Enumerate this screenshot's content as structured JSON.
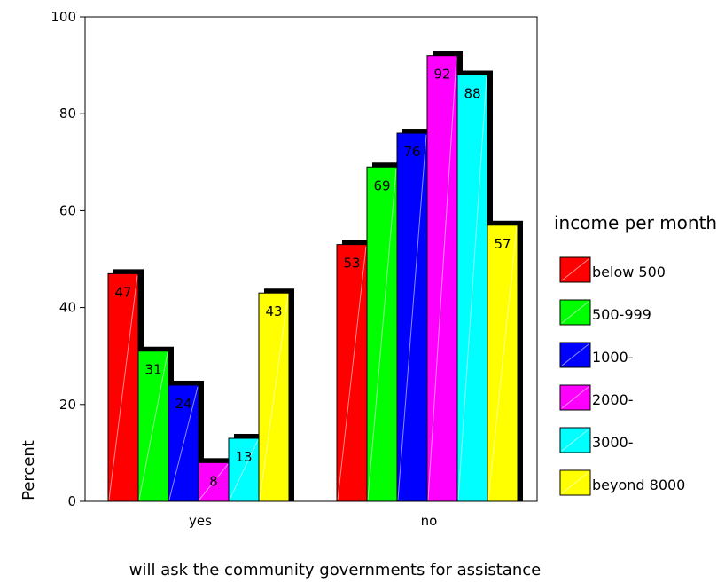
{
  "chart_data": {
    "type": "bar",
    "categories": [
      "yes",
      "no"
    ],
    "series": [
      {
        "name": "below 500",
        "values": [
          47,
          53
        ],
        "color": "#ff0000"
      },
      {
        "name": "500-999",
        "values": [
          31,
          69
        ],
        "color": "#00ff00"
      },
      {
        "name": "1000-",
        "values": [
          24,
          76
        ],
        "color": "#0000ff"
      },
      {
        "name": "2000-",
        "values": [
          8,
          92
        ],
        "color": "#ff00ff"
      },
      {
        "name": "3000-",
        "values": [
          13,
          88
        ],
        "color": "#00ffff"
      },
      {
        "name": "beyond 8000",
        "values": [
          43,
          57
        ],
        "color": "#ffff00"
      }
    ],
    "data_labels": [
      [
        "47",
        "31",
        "24",
        "8",
        "13",
        "43"
      ],
      [
        "53",
        "69",
        "76",
        "92",
        "88",
        "57"
      ]
    ],
    "xlabel": "will ask the community governments for assistance",
    "ylabel": "Percent",
    "ylim": [
      0,
      100
    ],
    "yticks": [
      "0",
      "20",
      "40",
      "60",
      "80",
      "100"
    ],
    "legend_title": "income per month",
    "legend_position": "right",
    "grid": false
  }
}
